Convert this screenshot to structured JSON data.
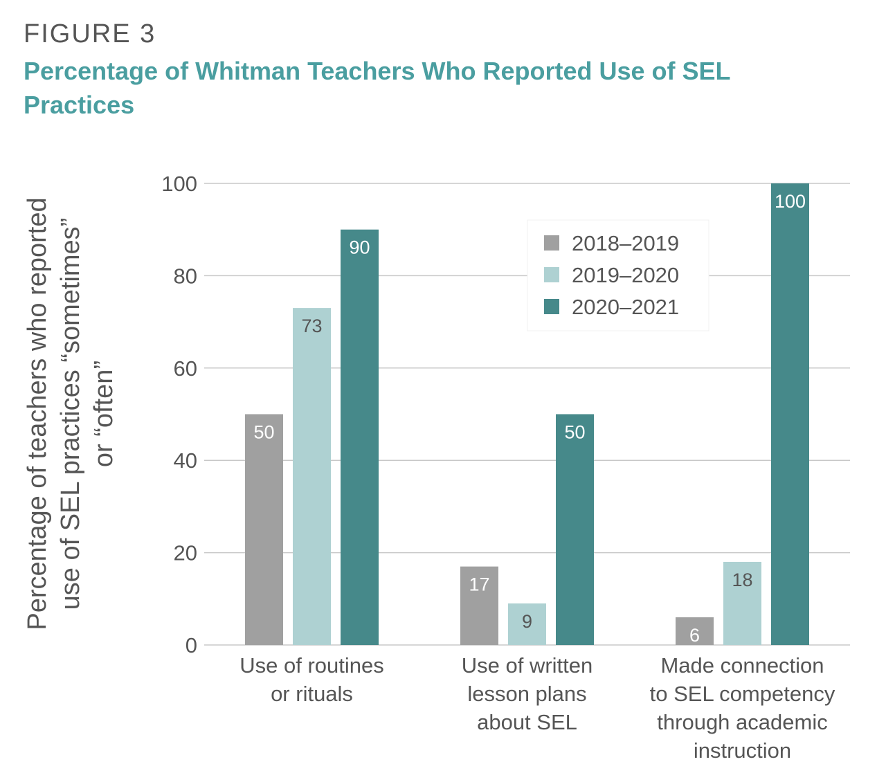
{
  "figure_label": "FIGURE 3",
  "title": "Percentage of Whitman Teachers Who Reported Use of SEL Practices",
  "colors": {
    "title": "#4a9ea0",
    "series": [
      "#a0a0a0",
      "#aed1d2",
      "#46898a"
    ],
    "grid": "#c8c8c8",
    "text": "#555555"
  },
  "chart_data": {
    "type": "bar",
    "ylabel": [
      "Percentage of teachers who reported",
      "use of SEL practices “sometimes”",
      "or “often”"
    ],
    "xlabel": "",
    "ylim": [
      0,
      100
    ],
    "yticks": [
      0,
      20,
      40,
      60,
      80,
      100
    ],
    "grid": true,
    "legend_position": "top-right",
    "categories": [
      [
        "Use of routines",
        "or rituals"
      ],
      [
        "Use of written",
        "lesson plans",
        "about SEL"
      ],
      [
        "Made connection",
        "to SEL competency",
        "through academic",
        "instruction"
      ]
    ],
    "series": [
      {
        "name": "2018–2019",
        "values": [
          50,
          17,
          6
        ]
      },
      {
        "name": "2019–2020",
        "values": [
          73,
          9,
          18
        ]
      },
      {
        "name": "2020–2021",
        "values": [
          90,
          50,
          100
        ]
      }
    ]
  }
}
